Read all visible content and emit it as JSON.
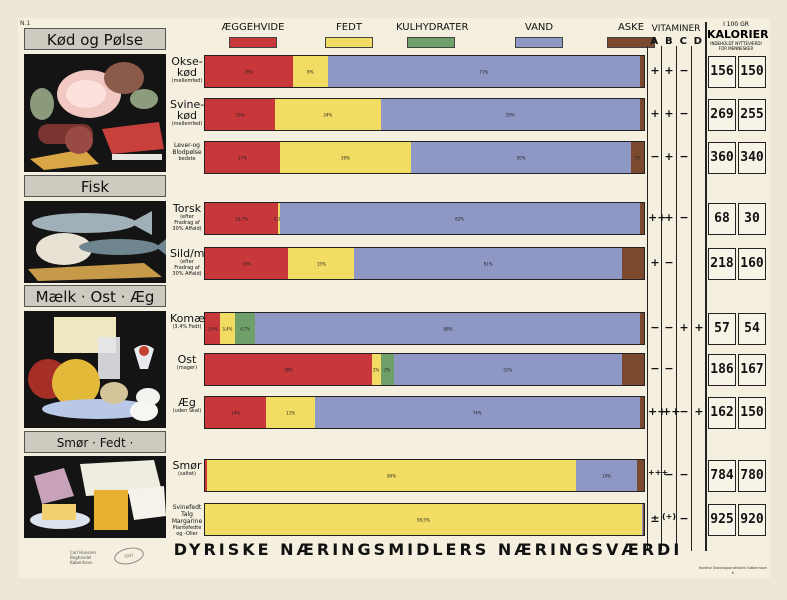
{
  "corner_label": "N.1",
  "title": "DYRISKE NÆRINGSMIDLERS NÆRINGSVÆRDI",
  "legend": [
    {
      "label": "ÆGGEHVIDE",
      "color": "#c8383b"
    },
    {
      "label": "FEDT",
      "color": "#f2dc63"
    },
    {
      "label": "KULHYDRATER",
      "color": "#6fa06a"
    },
    {
      "label": "VAND",
      "color": "#8f97c4"
    },
    {
      "label": "ASKE",
      "color": "#7b4a2e"
    }
  ],
  "vitaminer": {
    "label": "VITAMINER",
    "letters": [
      "A",
      "B",
      "C",
      "D"
    ]
  },
  "kalorier": {
    "top": "I 100 GR",
    "label": "KALORIER",
    "sub": "INDEHOLDT NYTTEVÆRDI FOR MENNESKER"
  },
  "categories": [
    {
      "title": "Kød og Pølse"
    },
    {
      "title": "Fisk"
    },
    {
      "title": "Mælk · Ost · Æg"
    },
    {
      "title": "Smør · Fedt · Margarine"
    }
  ],
  "stamp_text": "Carl Hansens Boghandel København",
  "stamp2_text": "1931",
  "printer_text": "Nordisk Skoleapparatfabrik København K",
  "chart_data": {
    "type": "bar",
    "orientation": "horizontal",
    "stacked": "percent",
    "series_names": [
      "ÆGGEHVIDE",
      "FEDT",
      "KULHYDRATER",
      "VAND",
      "ASKE"
    ],
    "rows": [
      {
        "main": "Okse-kød",
        "sub": "(mellemfed)",
        "values": [
          20,
          8,
          0,
          71,
          1
        ],
        "labels": [
          "20%",
          "8%",
          "",
          "71%",
          ""
        ],
        "vit": [
          "+",
          "+",
          "−",
          ""
        ],
        "kal": [
          156,
          150
        ]
      },
      {
        "main": "Svine-kød",
        "sub": "(mellemfed)",
        "values": [
          16,
          24,
          0,
          59,
          1
        ],
        "labels": [
          "16%",
          "24%",
          "",
          "59%",
          ""
        ],
        "vit": [
          "+",
          "+",
          "−",
          ""
        ],
        "kal": [
          269,
          255
        ]
      },
      {
        "main": "Lever-og Blodpølse",
        "sub": "bedste",
        "values": [
          17,
          30,
          0,
          50,
          3
        ],
        "labels": [
          "17%",
          "30%",
          "",
          "50%",
          "3%"
        ],
        "vit": [
          "−",
          "+",
          "−",
          ""
        ],
        "kal": [
          360,
          340
        ]
      },
      {
        "main": "Torsk",
        "sub": "(efter Fradrag af 30% Affald)",
        "values": [
          16.7,
          0.3,
          0,
          82,
          1
        ],
        "labels": [
          "16,7%",
          "0,3%",
          "",
          "82%",
          ""
        ],
        "vit": [
          "++",
          "+",
          "−",
          ""
        ],
        "kal": [
          68,
          30
        ]
      },
      {
        "main": "Sild/ma-",
        "sub": "(efter Fradrag af 30% Affald)",
        "values": [
          19,
          15,
          0,
          61,
          5
        ],
        "labels": [
          "19%",
          "15%",
          "",
          "61%",
          ""
        ],
        "vit": [
          "+",
          "−",
          "",
          ""
        ],
        "kal": [
          218,
          160
        ]
      },
      {
        "main": "Komælk",
        "sub": "(3,4% Fedt)",
        "values": [
          3.4,
          3.4,
          4.7,
          87.7,
          0.8
        ],
        "labels": [
          "3,4%",
          "3,4%",
          "4,7%",
          "88%",
          ""
        ],
        "vit": [
          "−",
          "−",
          "+",
          "+"
        ],
        "kal": [
          57,
          54
        ]
      },
      {
        "main": "Ost",
        "sub": "(mager)",
        "values": [
          38,
          2,
          3,
          52,
          5
        ],
        "labels": [
          "38%",
          "2%",
          "3%",
          "52%",
          ""
        ],
        "vit": [
          "−",
          "−",
          "",
          ""
        ],
        "kal": [
          186,
          167
        ]
      },
      {
        "main": "Æg",
        "sub": "(uden Skal)",
        "values": [
          14,
          11,
          0,
          74,
          1
        ],
        "labels": [
          "14%",
          "11%",
          "",
          "74%",
          ""
        ],
        "vit": [
          "++",
          "++",
          "−",
          "+"
        ],
        "kal": [
          162,
          150
        ]
      },
      {
        "main": "Smør",
        "sub": "(saltet)",
        "values": [
          0.5,
          84,
          0,
          14,
          1.5
        ],
        "labels": [
          "",
          "84%",
          "",
          "14%",
          ""
        ],
        "vit": [
          "+++",
          "−",
          "−",
          ""
        ],
        "kal": [
          784,
          780
        ]
      },
      {
        "main": "Svinefedt Talg Margarine",
        "sub": "Plantefedte og -Olier",
        "values": [
          0,
          99.5,
          0,
          0.2,
          0.3
        ],
        "labels": [
          "",
          "99,5%",
          "",
          "",
          ""
        ],
        "vit": [
          "±",
          "(+)",
          "−",
          ""
        ],
        "kal": [
          925,
          920
        ]
      }
    ],
    "xlim": [
      0,
      100
    ],
    "legend_position": "top"
  }
}
